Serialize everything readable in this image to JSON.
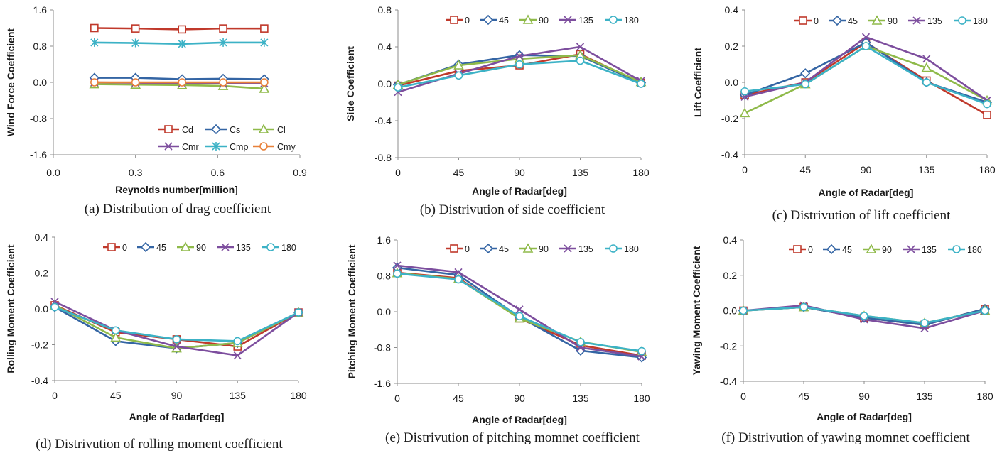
{
  "colors": {
    "red": "#c0392b",
    "blue": "#3465a4",
    "green": "#8fba4a",
    "purple": "#7d4e9e",
    "teal": "#3cb2c6",
    "orange": "#e8813a",
    "gray_axis": "#8c8c8c"
  },
  "chart_data": [
    {
      "id": "a",
      "type": "line",
      "caption": "(a) Distribution of drag coefficient",
      "xlabel": "Reynolds number[million]",
      "ylabel": "Wind Force Coefficient",
      "xlim": [
        0,
        0.9
      ],
      "ylim": [
        -1.6,
        1.6
      ],
      "xticks": [
        "0.0",
        "0.3",
        "0.6",
        "0.9"
      ],
      "yticks": [
        "1.6",
        "0.8",
        "0.0",
        "-0.8",
        "-1.6"
      ],
      "x": [
        0.15,
        0.3,
        0.47,
        0.62,
        0.77
      ],
      "legend_position": "bottom-right",
      "series": [
        {
          "name": "Cd",
          "marker": "square",
          "color": "#c0392b",
          "values": [
            1.2,
            1.19,
            1.17,
            1.19,
            1.19
          ]
        },
        {
          "name": "Cs",
          "marker": "diamond",
          "color": "#3465a4",
          "values": [
            0.1,
            0.1,
            0.07,
            0.08,
            0.07
          ]
        },
        {
          "name": "Cl",
          "marker": "triangle",
          "color": "#8fba4a",
          "values": [
            -0.04,
            -0.05,
            -0.06,
            -0.08,
            -0.14
          ]
        },
        {
          "name": "Cmr",
          "marker": "x",
          "color": "#7d4e9e",
          "values": [
            0.0,
            -0.01,
            -0.02,
            -0.02,
            -0.02
          ]
        },
        {
          "name": "Cmp",
          "marker": "star",
          "color": "#3cb2c6",
          "values": [
            0.88,
            0.87,
            0.85,
            0.88,
            0.88
          ]
        },
        {
          "name": "Cmy",
          "marker": "circle",
          "color": "#e8813a",
          "values": [
            0.0,
            0.0,
            0.0,
            0.0,
            0.0
          ]
        }
      ]
    },
    {
      "id": "b",
      "type": "line",
      "caption": "(b) Distrivution of side coefficient",
      "xlabel": "Angle of Radar[deg]",
      "ylabel": "Side Coefficient",
      "categories": [
        "0",
        "45",
        "90",
        "135",
        "180"
      ],
      "ylim": [
        -0.8,
        0.8
      ],
      "yticks": [
        "0.8",
        "0.4",
        "0.0",
        "-0.4",
        "-0.8"
      ],
      "legend_position": "top",
      "series": [
        {
          "name": "0",
          "marker": "square",
          "color": "#c0392b",
          "values": [
            -0.02,
            0.14,
            0.2,
            0.32,
            0.01
          ]
        },
        {
          "name": "45",
          "marker": "diamond",
          "color": "#3465a4",
          "values": [
            -0.01,
            0.21,
            0.31,
            0.3,
            0.01
          ]
        },
        {
          "name": "90",
          "marker": "triangle",
          "color": "#8fba4a",
          "values": [
            -0.01,
            0.2,
            0.27,
            0.31,
            0.02
          ]
        },
        {
          "name": "135",
          "marker": "x",
          "color": "#7d4e9e",
          "values": [
            -0.09,
            0.11,
            0.3,
            0.4,
            0.03
          ]
        },
        {
          "name": "180",
          "marker": "circle",
          "color": "#3cb2c6",
          "values": [
            -0.04,
            0.09,
            0.21,
            0.25,
            0.0
          ]
        }
      ]
    },
    {
      "id": "c",
      "type": "line",
      "caption": "(c) Distrivution of lift coefficient",
      "xlabel": "Angle of Radar[deg]",
      "ylabel": "Lift Coefficient",
      "categories": [
        "0",
        "45",
        "90",
        "135",
        "180"
      ],
      "ylim": [
        -0.4,
        0.4
      ],
      "yticks": [
        "0.4",
        "0.2",
        "0.0",
        "-0.2",
        "-0.4"
      ],
      "legend_position": "top",
      "series": [
        {
          "name": "0",
          "marker": "square",
          "color": "#c0392b",
          "values": [
            -0.07,
            0.0,
            0.22,
            0.01,
            -0.18
          ]
        },
        {
          "name": "45",
          "marker": "diamond",
          "color": "#3465a4",
          "values": [
            -0.07,
            0.05,
            0.22,
            0.0,
            -0.11
          ]
        },
        {
          "name": "90",
          "marker": "triangle",
          "color": "#8fba4a",
          "values": [
            -0.17,
            -0.01,
            0.2,
            0.08,
            -0.1
          ]
        },
        {
          "name": "135",
          "marker": "x",
          "color": "#7d4e9e",
          "values": [
            -0.08,
            0.0,
            0.25,
            0.13,
            -0.1
          ]
        },
        {
          "name": "180",
          "marker": "circle",
          "color": "#3cb2c6",
          "values": [
            -0.05,
            -0.01,
            0.2,
            0.0,
            -0.12
          ]
        }
      ]
    },
    {
      "id": "d",
      "type": "line",
      "caption": "(d) Distrivution of rolling moment coefficient",
      "xlabel": "Angle of Radar[deg]",
      "ylabel": "Rolling Moment Coefficient",
      "categories": [
        "0",
        "45",
        "90",
        "135",
        "180"
      ],
      "ylim": [
        -0.4,
        0.4
      ],
      "yticks": [
        "0.4",
        "0.2",
        "0.0",
        "-0.2",
        "-0.4"
      ],
      "legend_position": "top",
      "series": [
        {
          "name": "0",
          "marker": "square",
          "color": "#c0392b",
          "values": [
            0.02,
            -0.13,
            -0.17,
            -0.21,
            -0.02
          ]
        },
        {
          "name": "45",
          "marker": "diamond",
          "color": "#3465a4",
          "values": [
            0.01,
            -0.18,
            -0.22,
            -0.19,
            -0.02
          ]
        },
        {
          "name": "90",
          "marker": "triangle",
          "color": "#8fba4a",
          "values": [
            0.02,
            -0.16,
            -0.22,
            -0.19,
            -0.02
          ]
        },
        {
          "name": "135",
          "marker": "x",
          "color": "#7d4e9e",
          "values": [
            0.04,
            -0.12,
            -0.21,
            -0.26,
            -0.02
          ]
        },
        {
          "name": "180",
          "marker": "circle",
          "color": "#3cb2c6",
          "values": [
            0.01,
            -0.12,
            -0.17,
            -0.18,
            -0.02
          ]
        }
      ]
    },
    {
      "id": "e",
      "type": "line",
      "caption": "(e) Distrivution of pitching momnet coefficient",
      "xlabel": "Angle of Radar[deg]",
      "ylabel": "Pitching Moment Coefficient",
      "categories": [
        "0",
        "45",
        "90",
        "135",
        "180"
      ],
      "ylim": [
        -1.6,
        1.6
      ],
      "yticks": [
        "1.6",
        "0.8",
        "0.0",
        "-0.8",
        "-1.6"
      ],
      "legend_position": "top",
      "series": [
        {
          "name": "0",
          "marker": "square",
          "color": "#c0392b",
          "values": [
            0.87,
            0.75,
            -0.15,
            -0.75,
            -0.98
          ]
        },
        {
          "name": "45",
          "marker": "diamond",
          "color": "#3465a4",
          "values": [
            0.98,
            0.82,
            -0.12,
            -0.87,
            -1.02
          ]
        },
        {
          "name": "90",
          "marker": "triangle",
          "color": "#8fba4a",
          "values": [
            0.86,
            0.73,
            -0.15,
            -0.67,
            -0.9
          ]
        },
        {
          "name": "135",
          "marker": "x",
          "color": "#7d4e9e",
          "values": [
            1.03,
            0.88,
            0.05,
            -0.8,
            -1.0
          ]
        },
        {
          "name": "180",
          "marker": "circle",
          "color": "#3cb2c6",
          "values": [
            0.85,
            0.72,
            -0.1,
            -0.68,
            -0.88
          ]
        }
      ]
    },
    {
      "id": "f",
      "type": "line",
      "caption": "(f) Distrivution of yawing momnet coefficient",
      "xlabel": "Angle of Radar[deg]",
      "ylabel": "Yawing Moment Coefficient",
      "categories": [
        "0",
        "45",
        "90",
        "135",
        "180"
      ],
      "ylim": [
        -0.4,
        0.4
      ],
      "yticks": [
        "0.4",
        "0.2",
        "0.0",
        "-0.2",
        "-0.4"
      ],
      "legend_position": "top",
      "series": [
        {
          "name": "0",
          "marker": "square",
          "color": "#c0392b",
          "values": [
            0.0,
            0.02,
            -0.04,
            -0.08,
            0.01
          ]
        },
        {
          "name": "45",
          "marker": "diamond",
          "color": "#3465a4",
          "values": [
            0.0,
            0.02,
            -0.04,
            -0.08,
            0.01
          ]
        },
        {
          "name": "90",
          "marker": "triangle",
          "color": "#8fba4a",
          "values": [
            0.0,
            0.02,
            -0.03,
            -0.07,
            0.0
          ]
        },
        {
          "name": "135",
          "marker": "x",
          "color": "#7d4e9e",
          "values": [
            0.0,
            0.03,
            -0.05,
            -0.1,
            0.0
          ]
        },
        {
          "name": "180",
          "marker": "circle",
          "color": "#3cb2c6",
          "values": [
            0.0,
            0.02,
            -0.03,
            -0.07,
            0.0
          ]
        }
      ]
    }
  ]
}
